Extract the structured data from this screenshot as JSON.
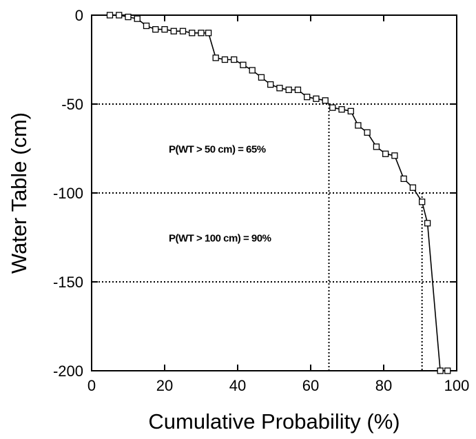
{
  "chart_data": {
    "type": "line",
    "title": "",
    "xlabel": "Cumulative Probability (%)",
    "ylabel": "Water Table (cm)",
    "xlim": [
      0,
      100
    ],
    "ylim": [
      -200,
      0
    ],
    "xticks": [
      0,
      20,
      40,
      60,
      80,
      100
    ],
    "yticks": [
      0,
      -50,
      -100,
      -150,
      -200
    ],
    "grid": false,
    "marker": "open-square",
    "line_color": "#000000",
    "series": [
      {
        "name": "",
        "x": [
          5,
          7.5,
          10,
          12.5,
          15,
          17.5,
          20,
          22.5,
          25,
          27.5,
          30,
          32,
          34,
          36.5,
          39,
          41.5,
          44,
          46.5,
          49,
          51.5,
          54,
          56.5,
          59,
          61.5,
          64,
          66,
          68.5,
          71,
          73,
          75.5,
          78,
          80.5,
          83,
          85.5,
          88,
          90.5,
          92,
          95.5,
          97.5
        ],
        "y": [
          0,
          0,
          -1,
          -2,
          -6,
          -8,
          -8,
          -9,
          -9,
          -10,
          -10,
          -10,
          -24,
          -25,
          -25,
          -28,
          -31,
          -35,
          -39,
          -41,
          -42,
          -42,
          -46,
          -47,
          -48,
          -52,
          -53,
          -54,
          -62,
          -66,
          -74,
          -78,
          -79,
          -92,
          -97,
          -105,
          -117,
          -200,
          -200
        ]
      }
    ],
    "reference_lines": {
      "horizontal": [
        -50,
        -100,
        -150
      ],
      "vertical": [
        {
          "x": 65,
          "y_top": -50
        },
        {
          "x": 90.5,
          "y_top": -100
        }
      ]
    },
    "annotations": [
      {
        "text": "P(WT > 50 cm) = 65%",
        "x": 20,
        "y": -75
      },
      {
        "text": "P(WT > 100 cm) = 90%",
        "x": 20,
        "y": -125
      }
    ]
  }
}
